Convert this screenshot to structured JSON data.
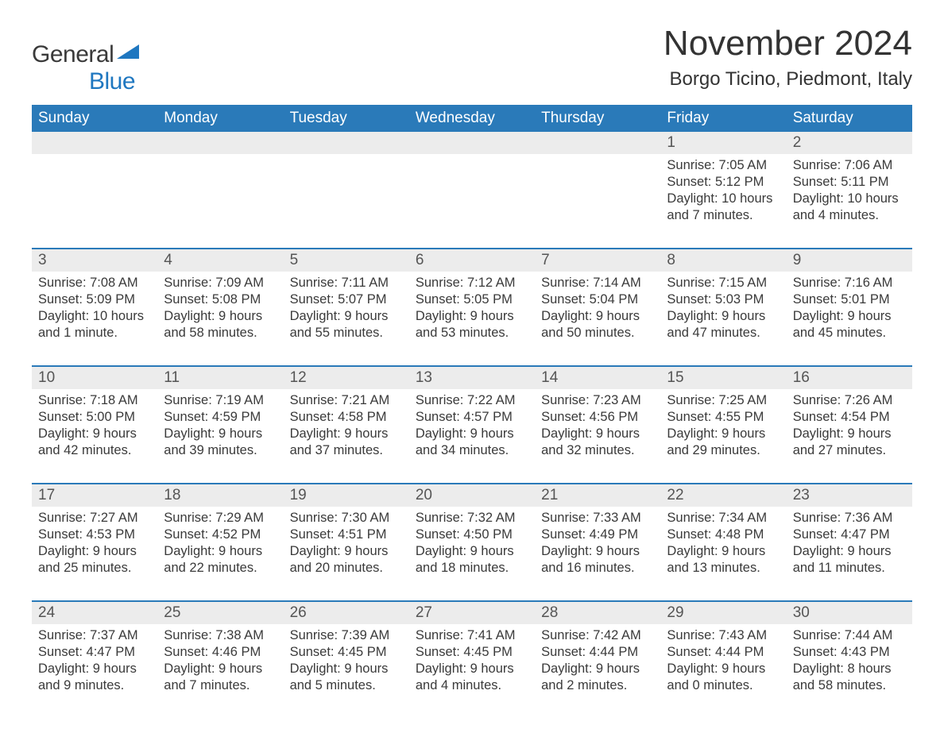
{
  "logo": {
    "part1": "General",
    "part2": "Blue",
    "text_color": "#3a3a3a",
    "accent_color": "#1f77c0"
  },
  "title": "November 2024",
  "subtitle": "Borgo Ticino, Piedmont, Italy",
  "title_fontsize": 44,
  "subtitle_fontsize": 24,
  "colors": {
    "background": "#ffffff",
    "header_bg": "#2a7ab9",
    "header_text": "#ffffff",
    "week_border": "#2a7ab9",
    "daynum_bg": "#ececec",
    "daynum_text": "#555555",
    "body_text": "#3a3a3a"
  },
  "day_headers": [
    "Sunday",
    "Monday",
    "Tuesday",
    "Wednesday",
    "Thursday",
    "Friday",
    "Saturday"
  ],
  "weeks": [
    [
      {
        "empty": true
      },
      {
        "empty": true
      },
      {
        "empty": true
      },
      {
        "empty": true
      },
      {
        "empty": true
      },
      {
        "day": "1",
        "sunrise": "Sunrise: 7:05 AM",
        "sunset": "Sunset: 5:12 PM",
        "dl1": "Daylight: 10 hours",
        "dl2": "and 7 minutes."
      },
      {
        "day": "2",
        "sunrise": "Sunrise: 7:06 AM",
        "sunset": "Sunset: 5:11 PM",
        "dl1": "Daylight: 10 hours",
        "dl2": "and 4 minutes."
      }
    ],
    [
      {
        "day": "3",
        "sunrise": "Sunrise: 7:08 AM",
        "sunset": "Sunset: 5:09 PM",
        "dl1": "Daylight: 10 hours",
        "dl2": "and 1 minute."
      },
      {
        "day": "4",
        "sunrise": "Sunrise: 7:09 AM",
        "sunset": "Sunset: 5:08 PM",
        "dl1": "Daylight: 9 hours",
        "dl2": "and 58 minutes."
      },
      {
        "day": "5",
        "sunrise": "Sunrise: 7:11 AM",
        "sunset": "Sunset: 5:07 PM",
        "dl1": "Daylight: 9 hours",
        "dl2": "and 55 minutes."
      },
      {
        "day": "6",
        "sunrise": "Sunrise: 7:12 AM",
        "sunset": "Sunset: 5:05 PM",
        "dl1": "Daylight: 9 hours",
        "dl2": "and 53 minutes."
      },
      {
        "day": "7",
        "sunrise": "Sunrise: 7:14 AM",
        "sunset": "Sunset: 5:04 PM",
        "dl1": "Daylight: 9 hours",
        "dl2": "and 50 minutes."
      },
      {
        "day": "8",
        "sunrise": "Sunrise: 7:15 AM",
        "sunset": "Sunset: 5:03 PM",
        "dl1": "Daylight: 9 hours",
        "dl2": "and 47 minutes."
      },
      {
        "day": "9",
        "sunrise": "Sunrise: 7:16 AM",
        "sunset": "Sunset: 5:01 PM",
        "dl1": "Daylight: 9 hours",
        "dl2": "and 45 minutes."
      }
    ],
    [
      {
        "day": "10",
        "sunrise": "Sunrise: 7:18 AM",
        "sunset": "Sunset: 5:00 PM",
        "dl1": "Daylight: 9 hours",
        "dl2": "and 42 minutes."
      },
      {
        "day": "11",
        "sunrise": "Sunrise: 7:19 AM",
        "sunset": "Sunset: 4:59 PM",
        "dl1": "Daylight: 9 hours",
        "dl2": "and 39 minutes."
      },
      {
        "day": "12",
        "sunrise": "Sunrise: 7:21 AM",
        "sunset": "Sunset: 4:58 PM",
        "dl1": "Daylight: 9 hours",
        "dl2": "and 37 minutes."
      },
      {
        "day": "13",
        "sunrise": "Sunrise: 7:22 AM",
        "sunset": "Sunset: 4:57 PM",
        "dl1": "Daylight: 9 hours",
        "dl2": "and 34 minutes."
      },
      {
        "day": "14",
        "sunrise": "Sunrise: 7:23 AM",
        "sunset": "Sunset: 4:56 PM",
        "dl1": "Daylight: 9 hours",
        "dl2": "and 32 minutes."
      },
      {
        "day": "15",
        "sunrise": "Sunrise: 7:25 AM",
        "sunset": "Sunset: 4:55 PM",
        "dl1": "Daylight: 9 hours",
        "dl2": "and 29 minutes."
      },
      {
        "day": "16",
        "sunrise": "Sunrise: 7:26 AM",
        "sunset": "Sunset: 4:54 PM",
        "dl1": "Daylight: 9 hours",
        "dl2": "and 27 minutes."
      }
    ],
    [
      {
        "day": "17",
        "sunrise": "Sunrise: 7:27 AM",
        "sunset": "Sunset: 4:53 PM",
        "dl1": "Daylight: 9 hours",
        "dl2": "and 25 minutes."
      },
      {
        "day": "18",
        "sunrise": "Sunrise: 7:29 AM",
        "sunset": "Sunset: 4:52 PM",
        "dl1": "Daylight: 9 hours",
        "dl2": "and 22 minutes."
      },
      {
        "day": "19",
        "sunrise": "Sunrise: 7:30 AM",
        "sunset": "Sunset: 4:51 PM",
        "dl1": "Daylight: 9 hours",
        "dl2": "and 20 minutes."
      },
      {
        "day": "20",
        "sunrise": "Sunrise: 7:32 AM",
        "sunset": "Sunset: 4:50 PM",
        "dl1": "Daylight: 9 hours",
        "dl2": "and 18 minutes."
      },
      {
        "day": "21",
        "sunrise": "Sunrise: 7:33 AM",
        "sunset": "Sunset: 4:49 PM",
        "dl1": "Daylight: 9 hours",
        "dl2": "and 16 minutes."
      },
      {
        "day": "22",
        "sunrise": "Sunrise: 7:34 AM",
        "sunset": "Sunset: 4:48 PM",
        "dl1": "Daylight: 9 hours",
        "dl2": "and 13 minutes."
      },
      {
        "day": "23",
        "sunrise": "Sunrise: 7:36 AM",
        "sunset": "Sunset: 4:47 PM",
        "dl1": "Daylight: 9 hours",
        "dl2": "and 11 minutes."
      }
    ],
    [
      {
        "day": "24",
        "sunrise": "Sunrise: 7:37 AM",
        "sunset": "Sunset: 4:47 PM",
        "dl1": "Daylight: 9 hours",
        "dl2": "and 9 minutes."
      },
      {
        "day": "25",
        "sunrise": "Sunrise: 7:38 AM",
        "sunset": "Sunset: 4:46 PM",
        "dl1": "Daylight: 9 hours",
        "dl2": "and 7 minutes."
      },
      {
        "day": "26",
        "sunrise": "Sunrise: 7:39 AM",
        "sunset": "Sunset: 4:45 PM",
        "dl1": "Daylight: 9 hours",
        "dl2": "and 5 minutes."
      },
      {
        "day": "27",
        "sunrise": "Sunrise: 7:41 AM",
        "sunset": "Sunset: 4:45 PM",
        "dl1": "Daylight: 9 hours",
        "dl2": "and 4 minutes."
      },
      {
        "day": "28",
        "sunrise": "Sunrise: 7:42 AM",
        "sunset": "Sunset: 4:44 PM",
        "dl1": "Daylight: 9 hours",
        "dl2": "and 2 minutes."
      },
      {
        "day": "29",
        "sunrise": "Sunrise: 7:43 AM",
        "sunset": "Sunset: 4:44 PM",
        "dl1": "Daylight: 9 hours",
        "dl2": "and 0 minutes."
      },
      {
        "day": "30",
        "sunrise": "Sunrise: 7:44 AM",
        "sunset": "Sunset: 4:43 PM",
        "dl1": "Daylight: 8 hours",
        "dl2": "and 58 minutes."
      }
    ]
  ]
}
